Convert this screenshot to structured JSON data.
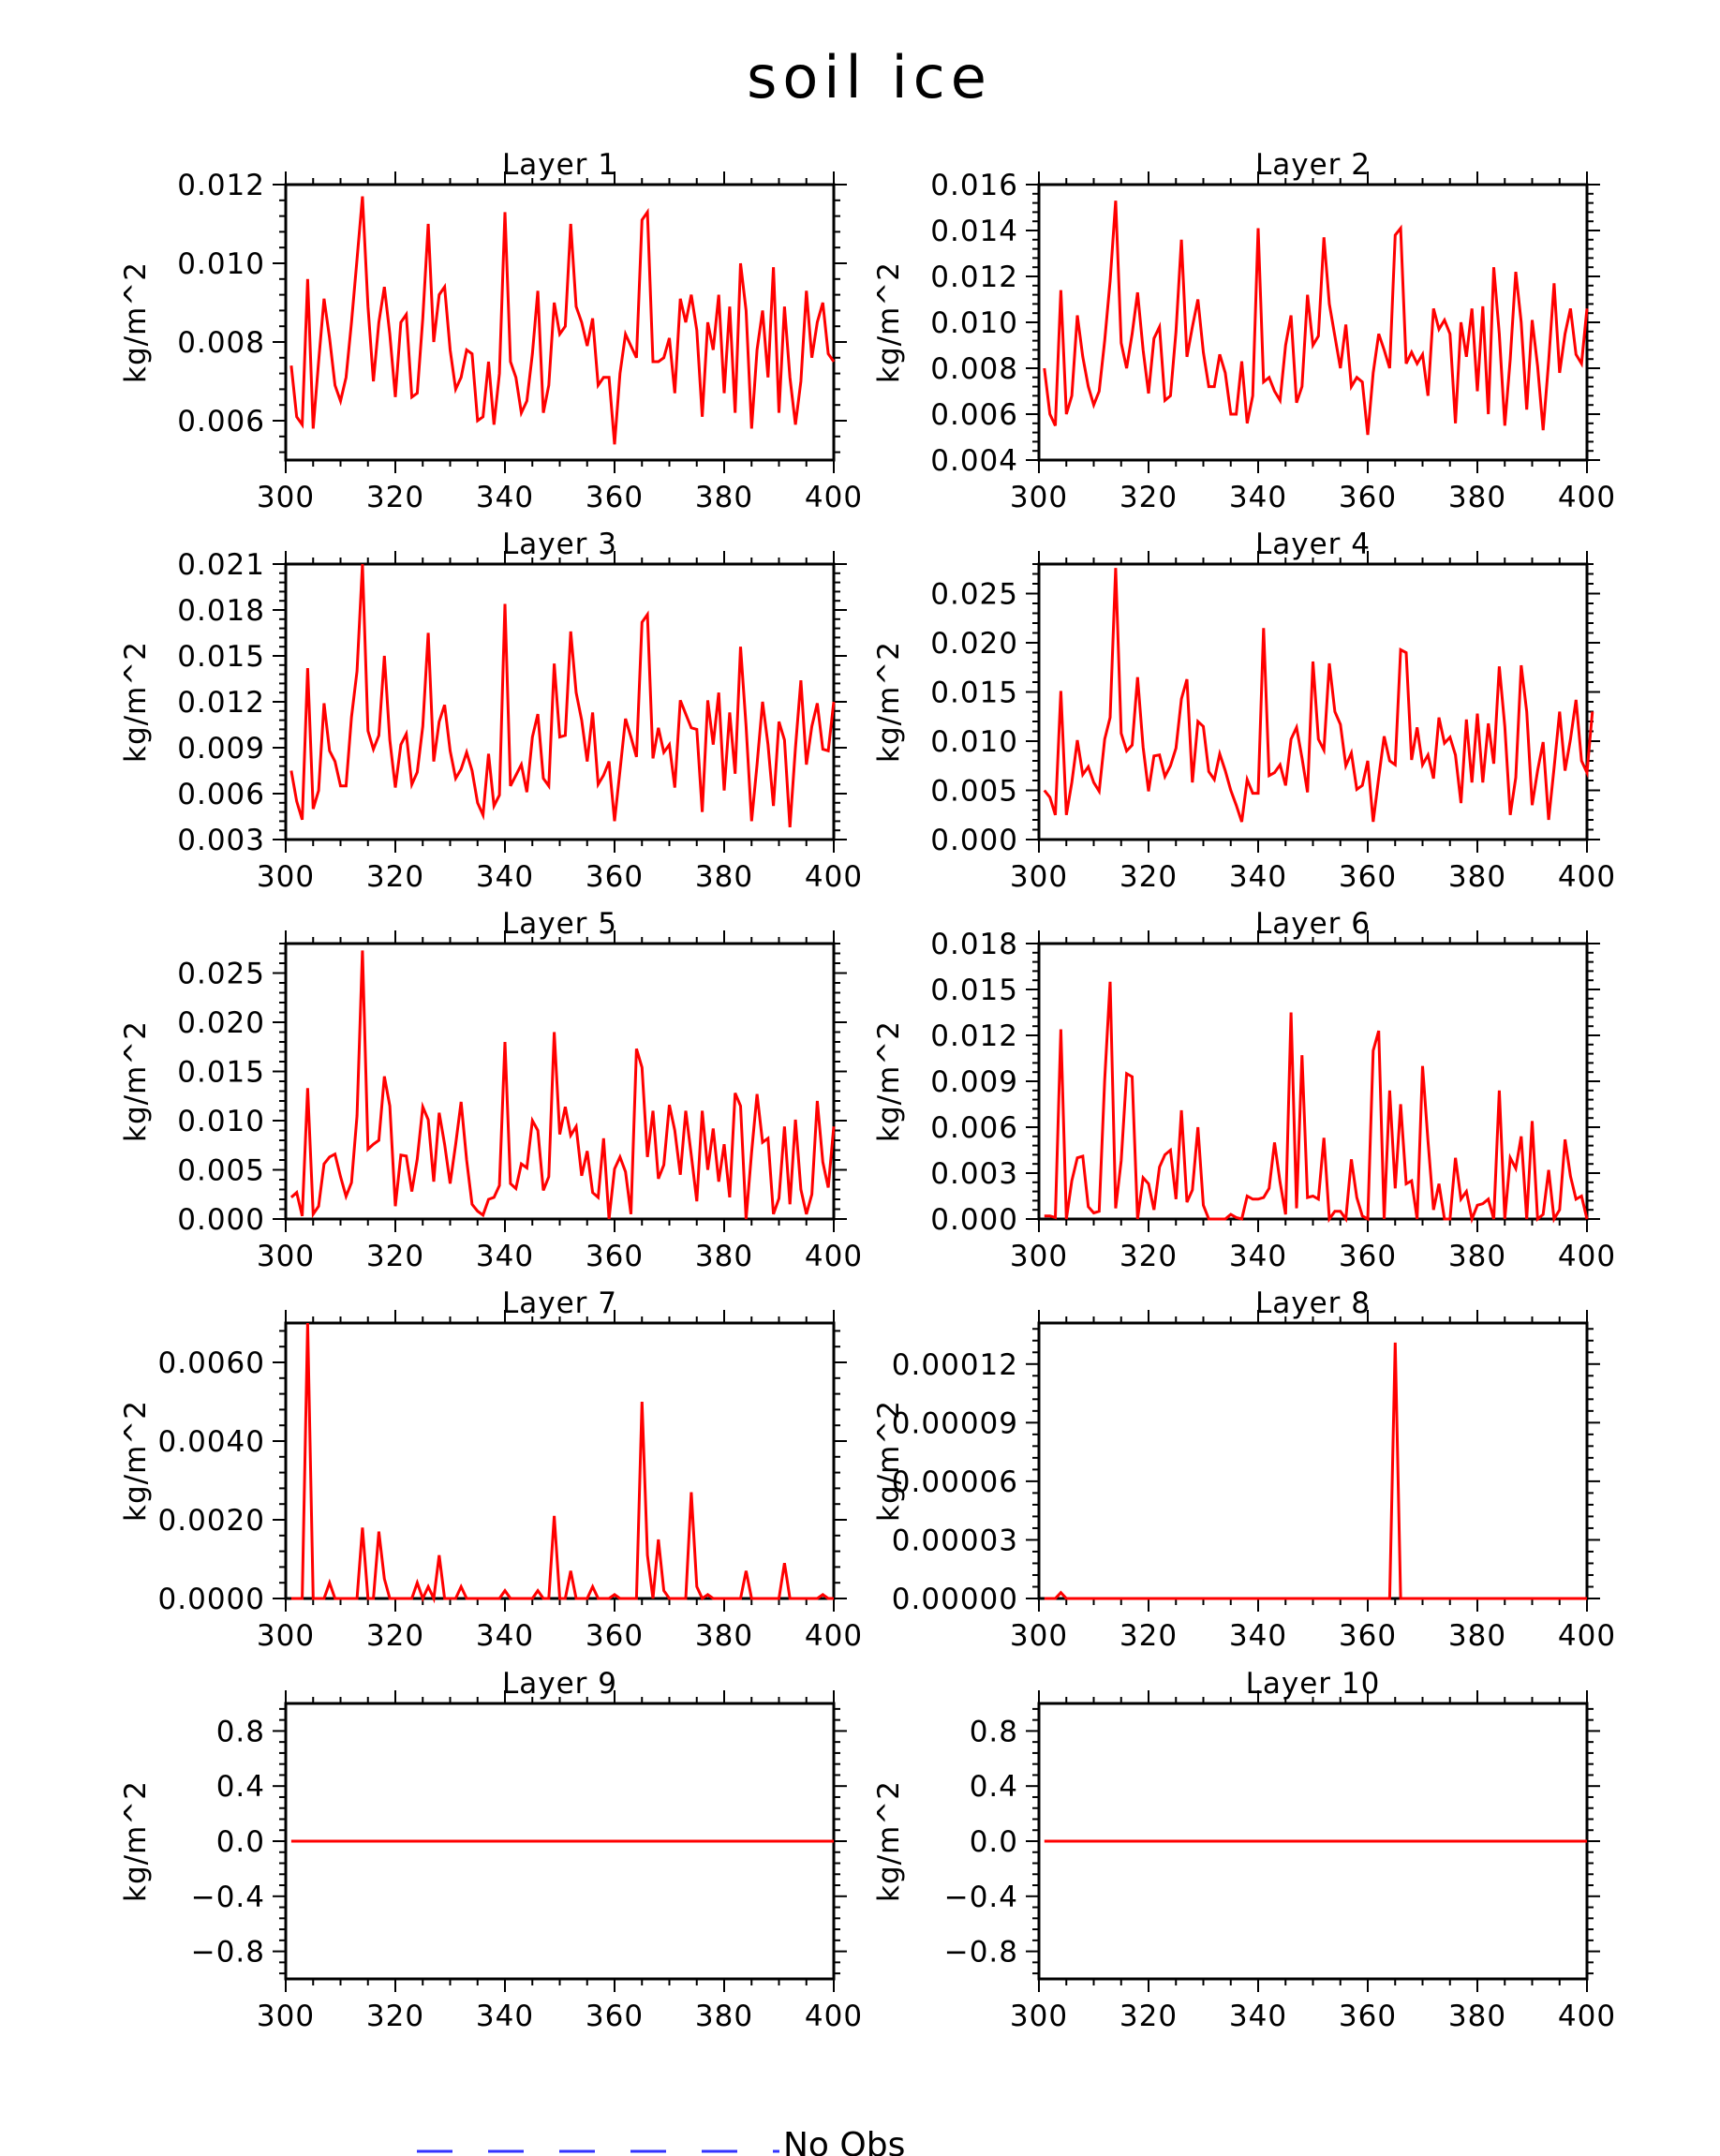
{
  "figure": {
    "title": "soil ice",
    "legend_label": "No Obs",
    "line_color": "#ff0000",
    "legend_line_color": "#3333ff"
  },
  "chart_data": [
    {
      "type": "line",
      "title": "Layer 1",
      "ylabel": "kg/m^2",
      "xlim": [
        300,
        400
      ],
      "ylim": [
        0.005,
        0.012
      ],
      "xticks": [
        300,
        320,
        340,
        360,
        380,
        400
      ],
      "xtick_labels": [
        "300",
        "320",
        "340",
        "360",
        "380",
        "400"
      ],
      "yticks": [
        0.006,
        0.008,
        0.01,
        0.012
      ],
      "ytick_labels": [
        "0.006",
        "0.008",
        "0.010",
        "0.012"
      ],
      "x_start": 301,
      "values": [
        0.0074,
        0.0061,
        0.0059,
        0.0096,
        0.0058,
        0.0075,
        0.0091,
        0.0081,
        0.0069,
        0.0065,
        0.0071,
        0.0085,
        0.0101,
        0.0117,
        0.0089,
        0.007,
        0.0085,
        0.0094,
        0.0082,
        0.0066,
        0.0085,
        0.0087,
        0.0066,
        0.0067,
        0.0086,
        0.011,
        0.008,
        0.0092,
        0.0094,
        0.0078,
        0.0068,
        0.0071,
        0.0078,
        0.0077,
        0.006,
        0.0061,
        0.0075,
        0.0059,
        0.0072,
        0.0113,
        0.0075,
        0.0071,
        0.0062,
        0.0065,
        0.0077,
        0.0093,
        0.0062,
        0.0069,
        0.009,
        0.0082,
        0.0084,
        0.011,
        0.0089,
        0.0085,
        0.0079,
        0.0086,
        0.0069,
        0.0071,
        0.0071,
        0.0054,
        0.0072,
        0.0082,
        0.0079,
        0.0076,
        0.0111,
        0.0113,
        0.0075,
        0.0075,
        0.0076,
        0.0081,
        0.0067,
        0.0091,
        0.0085,
        0.0092,
        0.0083,
        0.0061,
        0.0085,
        0.0078,
        0.0092,
        0.0067,
        0.0089,
        0.0062,
        0.01,
        0.0088,
        0.0058,
        0.0078,
        0.0088,
        0.0071,
        0.0099,
        0.0062,
        0.0089,
        0.0071,
        0.0059,
        0.007,
        0.0093,
        0.0076,
        0.0085,
        0.009,
        0.0077,
        0.0075
      ]
    },
    {
      "type": "line",
      "title": "Layer 2",
      "ylabel": "kg/m^2",
      "xlim": [
        300,
        400
      ],
      "ylim": [
        0.004,
        0.016
      ],
      "xticks": [
        300,
        320,
        340,
        360,
        380,
        400
      ],
      "xtick_labels": [
        "300",
        "320",
        "340",
        "360",
        "380",
        "400"
      ],
      "yticks": [
        0.004,
        0.006,
        0.008,
        0.01,
        0.012,
        0.014,
        0.016
      ],
      "ytick_labels": [
        "0.004",
        "0.006",
        "0.008",
        "0.010",
        "0.012",
        "0.014",
        "0.016"
      ],
      "x_start": 301,
      "values": [
        0.008,
        0.006,
        0.0055,
        0.0114,
        0.006,
        0.0068,
        0.0103,
        0.0085,
        0.0072,
        0.0064,
        0.007,
        0.0092,
        0.0118,
        0.0153,
        0.0091,
        0.008,
        0.0095,
        0.0113,
        0.0088,
        0.0069,
        0.0093,
        0.0098,
        0.0066,
        0.0068,
        0.0096,
        0.0136,
        0.0085,
        0.0098,
        0.011,
        0.0087,
        0.0072,
        0.0072,
        0.0086,
        0.0078,
        0.006,
        0.006,
        0.0083,
        0.0056,
        0.0068,
        0.0141,
        0.0074,
        0.0076,
        0.007,
        0.0066,
        0.009,
        0.0103,
        0.0065,
        0.0072,
        0.0112,
        0.009,
        0.0094,
        0.0137,
        0.0108,
        0.0094,
        0.008,
        0.0099,
        0.0072,
        0.0076,
        0.0074,
        0.0051,
        0.0078,
        0.0095,
        0.0088,
        0.008,
        0.0138,
        0.0141,
        0.0082,
        0.0087,
        0.0082,
        0.0086,
        0.0068,
        0.0106,
        0.0097,
        0.0101,
        0.0095,
        0.0056,
        0.01,
        0.0085,
        0.0106,
        0.007,
        0.0107,
        0.006,
        0.0124,
        0.0095,
        0.0055,
        0.0084,
        0.0122,
        0.01,
        0.0062,
        0.0101,
        0.0081,
        0.0053,
        0.0083,
        0.0117,
        0.0078,
        0.0095,
        0.0106,
        0.0086,
        0.0082,
        0.0106
      ]
    },
    {
      "type": "line",
      "title": "Layer 3",
      "ylabel": "kg/m^2",
      "xlim": [
        300,
        400
      ],
      "ylim": [
        0.003,
        0.021
      ],
      "xticks": [
        300,
        320,
        340,
        360,
        380,
        400
      ],
      "xtick_labels": [
        "300",
        "320",
        "340",
        "360",
        "380",
        "400"
      ],
      "yticks": [
        0.003,
        0.006,
        0.009,
        0.012,
        0.015,
        0.018,
        0.021
      ],
      "ytick_labels": [
        "0.003",
        "0.006",
        "0.009",
        "0.012",
        "0.015",
        "0.018",
        "0.021"
      ],
      "x_start": 301,
      "values": [
        0.0075,
        0.0055,
        0.0043,
        0.0142,
        0.005,
        0.0062,
        0.0119,
        0.0088,
        0.0081,
        0.0065,
        0.0065,
        0.011,
        0.014,
        0.0212,
        0.0101,
        0.0089,
        0.0098,
        0.015,
        0.0095,
        0.0064,
        0.0092,
        0.0099,
        0.0066,
        0.0074,
        0.0104,
        0.0165,
        0.0081,
        0.0107,
        0.0118,
        0.0088,
        0.007,
        0.0076,
        0.0087,
        0.0075,
        0.0054,
        0.0046,
        0.0086,
        0.0052,
        0.0059,
        0.0184,
        0.0065,
        0.0072,
        0.0079,
        0.0061,
        0.0097,
        0.0112,
        0.007,
        0.0065,
        0.0145,
        0.0097,
        0.0098,
        0.0166,
        0.0126,
        0.0108,
        0.0081,
        0.0113,
        0.0066,
        0.0072,
        0.0081,
        0.0042,
        0.0075,
        0.0109,
        0.0097,
        0.0084,
        0.0172,
        0.0177,
        0.0083,
        0.0103,
        0.0087,
        0.0092,
        0.0064,
        0.0121,
        0.0112,
        0.0103,
        0.0102,
        0.0048,
        0.0121,
        0.0092,
        0.0126,
        0.0062,
        0.0113,
        0.0073,
        0.0156,
        0.0104,
        0.0042,
        0.0079,
        0.012,
        0.0092,
        0.0052,
        0.0107,
        0.0095,
        0.0038,
        0.009,
        0.0134,
        0.0079,
        0.0104,
        0.0119,
        0.0089,
        0.0088,
        0.012
      ]
    },
    {
      "type": "line",
      "title": "Layer 4",
      "ylabel": "kg/m^2",
      "xlim": [
        300,
        400
      ],
      "ylim": [
        0.0,
        0.028
      ],
      "xticks": [
        300,
        320,
        340,
        360,
        380,
        400
      ],
      "xtick_labels": [
        "300",
        "320",
        "340",
        "360",
        "380",
        "400"
      ],
      "yticks": [
        0.0,
        0.005,
        0.01,
        0.015,
        0.02,
        0.025
      ],
      "ytick_labels": [
        "0.000",
        "0.005",
        "0.010",
        "0.015",
        "0.020",
        "0.025"
      ],
      "x_start": 301,
      "values": [
        0.005,
        0.0043,
        0.0025,
        0.0151,
        0.0025,
        0.0058,
        0.0101,
        0.0066,
        0.0074,
        0.0058,
        0.0049,
        0.0102,
        0.0124,
        0.0276,
        0.0108,
        0.009,
        0.0096,
        0.0165,
        0.0094,
        0.0049,
        0.0085,
        0.0086,
        0.0064,
        0.0075,
        0.0093,
        0.0143,
        0.0163,
        0.0058,
        0.012,
        0.0115,
        0.0069,
        0.0061,
        0.0087,
        0.007,
        0.005,
        0.0035,
        0.0018,
        0.0061,
        0.0047,
        0.0047,
        0.0215,
        0.0065,
        0.0068,
        0.0076,
        0.0055,
        0.0102,
        0.0114,
        0.0083,
        0.0048,
        0.0181,
        0.0102,
        0.0091,
        0.0179,
        0.013,
        0.0117,
        0.0075,
        0.0088,
        0.0051,
        0.0055,
        0.008,
        0.0018,
        0.0063,
        0.0105,
        0.008,
        0.0076,
        0.0193,
        0.019,
        0.0081,
        0.0114,
        0.0076,
        0.0086,
        0.0062,
        0.0124,
        0.0098,
        0.0104,
        0.0086,
        0.0037,
        0.0122,
        0.0058,
        0.0128,
        0.0058,
        0.0118,
        0.0077,
        0.0176,
        0.0115,
        0.0025,
        0.0063,
        0.0177,
        0.013,
        0.0035,
        0.007,
        0.0099,
        0.002,
        0.0073,
        0.013,
        0.007,
        0.0102,
        0.0142,
        0.008,
        0.0068,
        0.013
      ]
    },
    {
      "type": "line",
      "title": "Layer 5",
      "ylabel": "kg/m^2",
      "xlim": [
        300,
        400
      ],
      "ylim": [
        0.0,
        0.028
      ],
      "xticks": [
        300,
        320,
        340,
        360,
        380,
        400
      ],
      "xtick_labels": [
        "300",
        "320",
        "340",
        "360",
        "380",
        "400"
      ],
      "yticks": [
        0.0,
        0.005,
        0.01,
        0.015,
        0.02,
        0.025
      ],
      "ytick_labels": [
        "0.000",
        "0.005",
        "0.010",
        "0.015",
        "0.020",
        "0.025"
      ],
      "x_start": 301,
      "values": [
        0.0022,
        0.0027,
        0.0003,
        0.0133,
        0.0005,
        0.0013,
        0.0056,
        0.0063,
        0.0066,
        0.0043,
        0.0023,
        0.0037,
        0.0105,
        0.0273,
        0.0071,
        0.0076,
        0.008,
        0.0145,
        0.0115,
        0.0013,
        0.0065,
        0.0064,
        0.0028,
        0.0061,
        0.0114,
        0.0101,
        0.0038,
        0.0108,
        0.0076,
        0.0036,
        0.0076,
        0.0119,
        0.006,
        0.0015,
        0.0008,
        0.0004,
        0.002,
        0.0022,
        0.0034,
        0.018,
        0.0036,
        0.0031,
        0.0056,
        0.0052,
        0.01,
        0.009,
        0.0029,
        0.0043,
        0.019,
        0.0086,
        0.0114,
        0.0085,
        0.0094,
        0.0044,
        0.0069,
        0.0027,
        0.0022,
        0.0082,
        0.0,
        0.0051,
        0.0063,
        0.0048,
        0.0005,
        0.0173,
        0.0154,
        0.0063,
        0.011,
        0.0041,
        0.0055,
        0.0116,
        0.009,
        0.0045,
        0.011,
        0.0065,
        0.0018,
        0.011,
        0.005,
        0.0092,
        0.0038,
        0.0076,
        0.0022,
        0.0128,
        0.0115,
        0.0,
        0.0068,
        0.0127,
        0.0078,
        0.0082,
        0.0005,
        0.0021,
        0.0094,
        0.0015,
        0.0101,
        0.003,
        0.0005,
        0.0025,
        0.012,
        0.0058,
        0.0032,
        0.0094
      ]
    },
    {
      "type": "line",
      "title": "Layer 6",
      "ylabel": "kg/m^2",
      "xlim": [
        300,
        400
      ],
      "ylim": [
        0.0,
        0.018
      ],
      "xticks": [
        300,
        320,
        340,
        360,
        380,
        400
      ],
      "xtick_labels": [
        "300",
        "320",
        "340",
        "360",
        "380",
        "400"
      ],
      "yticks": [
        0.0,
        0.003,
        0.006,
        0.009,
        0.012,
        0.015,
        0.018
      ],
      "ytick_labels": [
        "0.000",
        "0.003",
        "0.006",
        "0.009",
        "0.012",
        "0.015",
        "0.018"
      ],
      "x_start": 301,
      "values": [
        0.0002,
        0.0002,
        0.0001,
        0.0124,
        0.0,
        0.0025,
        0.004,
        0.0041,
        0.0008,
        0.0004,
        0.0005,
        0.0091,
        0.0155,
        0.0007,
        0.0038,
        0.0095,
        0.0093,
        0.0,
        0.0027,
        0.0023,
        0.0006,
        0.0034,
        0.0042,
        0.0045,
        0.0013,
        0.0071,
        0.0011,
        0.0019,
        0.006,
        0.0009,
        0.0,
        0.0,
        0.0,
        0.0,
        0.0003,
        0.0001,
        0.0,
        0.0015,
        0.0013,
        0.0013,
        0.0014,
        0.002,
        0.005,
        0.0024,
        0.0003,
        0.0135,
        0.0007,
        0.0107,
        0.0014,
        0.0015,
        0.0013,
        0.0053,
        0.0,
        0.0005,
        0.0005,
        0.0,
        0.0039,
        0.0014,
        0.0002,
        0.0,
        0.011,
        0.0123,
        0.0,
        0.0084,
        0.002,
        0.0075,
        0.0023,
        0.0025,
        0.0,
        0.01,
        0.0051,
        0.0006,
        0.0023,
        0.0,
        0.0,
        0.004,
        0.0013,
        0.0018,
        0.0,
        0.0009,
        0.001,
        0.0013,
        0.0,
        0.0084,
        0.0,
        0.004,
        0.0033,
        0.0054,
        0.0,
        0.0064,
        0.0,
        0.0003,
        0.0032,
        0.0,
        0.0006,
        0.0052,
        0.0028,
        0.0013,
        0.0015,
        0.0
      ]
    },
    {
      "type": "line",
      "title": "Layer 7",
      "ylabel": "kg/m^2",
      "xlim": [
        300,
        400
      ],
      "ylim": [
        0.0,
        0.007
      ],
      "xticks": [
        300,
        320,
        340,
        360,
        380,
        400
      ],
      "xtick_labels": [
        "300",
        "320",
        "340",
        "360",
        "380",
        "400"
      ],
      "yticks": [
        0.0,
        0.002,
        0.004,
        0.006
      ],
      "ytick_labels": [
        "0.0000",
        "0.0020",
        "0.0040",
        "0.0060"
      ],
      "x_start": 301,
      "values": [
        0.0,
        0.0,
        0.0,
        0.0071,
        0.0,
        0.0,
        0.0,
        0.0004,
        0.0,
        0.0,
        0.0,
        0.0,
        0.0,
        0.0018,
        0.0,
        0.0,
        0.0017,
        0.0005,
        0.0,
        0.0,
        0.0,
        0.0,
        0.0,
        0.0004,
        0.0,
        0.0003,
        0.0,
        0.0011,
        0.0,
        0.0,
        0.0,
        0.0003,
        0.0,
        0.0,
        0.0,
        0.0,
        0.0,
        0.0,
        0.0,
        0.0002,
        0.0,
        0.0,
        0.0,
        0.0,
        0.0,
        0.0002,
        0.0,
        0.0,
        0.0021,
        0.0,
        0.0,
        0.0007,
        0.0,
        0.0,
        0.0,
        0.0003,
        0.0,
        0.0,
        0.0,
        0.0001,
        0.0,
        0.0,
        0.0,
        0.0,
        0.005,
        0.0011,
        0.0,
        0.0015,
        0.0002,
        0.0,
        0.0,
        0.0,
        0.0,
        0.0027,
        0.0003,
        0.0,
        0.0001,
        0.0,
        0.0,
        0.0,
        0.0,
        0.0,
        0.0,
        0.0007,
        0.0,
        0.0,
        0.0,
        0.0,
        0.0,
        0.0,
        0.0009,
        0.0,
        0.0,
        0.0,
        0.0,
        0.0,
        0.0,
        0.0001,
        0.0,
        0.0
      ]
    },
    {
      "type": "line",
      "title": "Layer 8",
      "ylabel": "kg/m^2",
      "xlim": [
        300,
        400
      ],
      "ylim": [
        0.0,
        0.000141
      ],
      "xticks": [
        300,
        320,
        340,
        360,
        380,
        400
      ],
      "xtick_labels": [
        "300",
        "320",
        "340",
        "360",
        "380",
        "400"
      ],
      "yticks": [
        0.0,
        3e-05,
        6e-05,
        9e-05,
        0.00012
      ],
      "ytick_labels": [
        "0.00000",
        "0.00003",
        "0.00006",
        "0.00009",
        "0.00012"
      ],
      "x_start": 301,
      "values": [
        0,
        0,
        0,
        3e-06,
        0,
        0,
        0,
        0,
        0,
        0,
        0,
        0,
        0,
        0,
        0,
        0,
        0,
        0,
        0,
        0,
        0,
        0,
        0,
        0,
        0,
        0,
        0,
        0,
        0,
        0,
        0,
        0,
        0,
        0,
        0,
        0,
        0,
        0,
        0,
        0,
        0,
        0,
        0,
        0,
        0,
        0,
        0,
        0,
        0,
        0,
        0,
        0,
        0,
        0,
        0,
        0,
        0,
        0,
        0,
        0,
        0,
        0,
        0,
        0,
        0.000131,
        0,
        0,
        0,
        0,
        0,
        0,
        0,
        0,
        0,
        0,
        0,
        0,
        0,
        0,
        0,
        0,
        0,
        0,
        0,
        0,
        0,
        0,
        0,
        0,
        0,
        0,
        0,
        0,
        0,
        0,
        0,
        0,
        0,
        0,
        0
      ]
    },
    {
      "type": "line",
      "title": "Layer 9",
      "ylabel": "kg/m^2",
      "xlim": [
        300,
        400
      ],
      "ylim": [
        -1.0,
        1.0
      ],
      "xticks": [
        300,
        320,
        340,
        360,
        380,
        400
      ],
      "xtick_labels": [
        "300",
        "320",
        "340",
        "360",
        "380",
        "400"
      ],
      "yticks": [
        -0.8,
        -0.4,
        0.0,
        0.4,
        0.8
      ],
      "ytick_labels": [
        "−0.8",
        "−0.4",
        "0.0",
        "0.4",
        "0.8"
      ],
      "x": [
        301,
        400
      ],
      "values": [
        0,
        0
      ]
    },
    {
      "type": "line",
      "title": "Layer 10",
      "ylabel": "kg/m^2",
      "xlim": [
        300,
        400
      ],
      "ylim": [
        -1.0,
        1.0
      ],
      "xticks": [
        300,
        320,
        340,
        360,
        380,
        400
      ],
      "xtick_labels": [
        "300",
        "320",
        "340",
        "360",
        "380",
        "400"
      ],
      "yticks": [
        -0.8,
        -0.4,
        0.0,
        0.4,
        0.8
      ],
      "ytick_labels": [
        "−0.8",
        "−0.4",
        "0.0",
        "0.4",
        "0.8"
      ],
      "x": [
        301,
        400
      ],
      "values": [
        0,
        0
      ]
    }
  ]
}
